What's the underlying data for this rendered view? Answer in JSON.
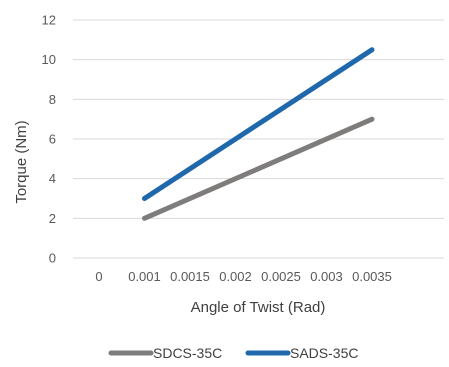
{
  "chart_data": {
    "type": "line",
    "title": "",
    "xlabel": "Angle of Twist (Rad)",
    "ylabel": "Torque (Nm)",
    "categories": [
      "0",
      "0.001",
      "0.0015",
      "0.002",
      "0.0025",
      "0.003",
      "0.0035"
    ],
    "ylim": [
      0,
      12
    ],
    "yticks": [
      "0",
      "2",
      "4",
      "6",
      "8",
      "10",
      "12"
    ],
    "grid": true,
    "legend_position": "bottom",
    "series": [
      {
        "name": "SDCS-35C",
        "color": "#7f7c7c",
        "points": [
          [
            0.001,
            2.0
          ],
          [
            0.0035,
            7.0
          ]
        ]
      },
      {
        "name": "SADS-35C",
        "color": "#1f68ab",
        "points": [
          [
            0.001,
            3.0
          ],
          [
            0.0035,
            10.5
          ]
        ]
      }
    ]
  }
}
